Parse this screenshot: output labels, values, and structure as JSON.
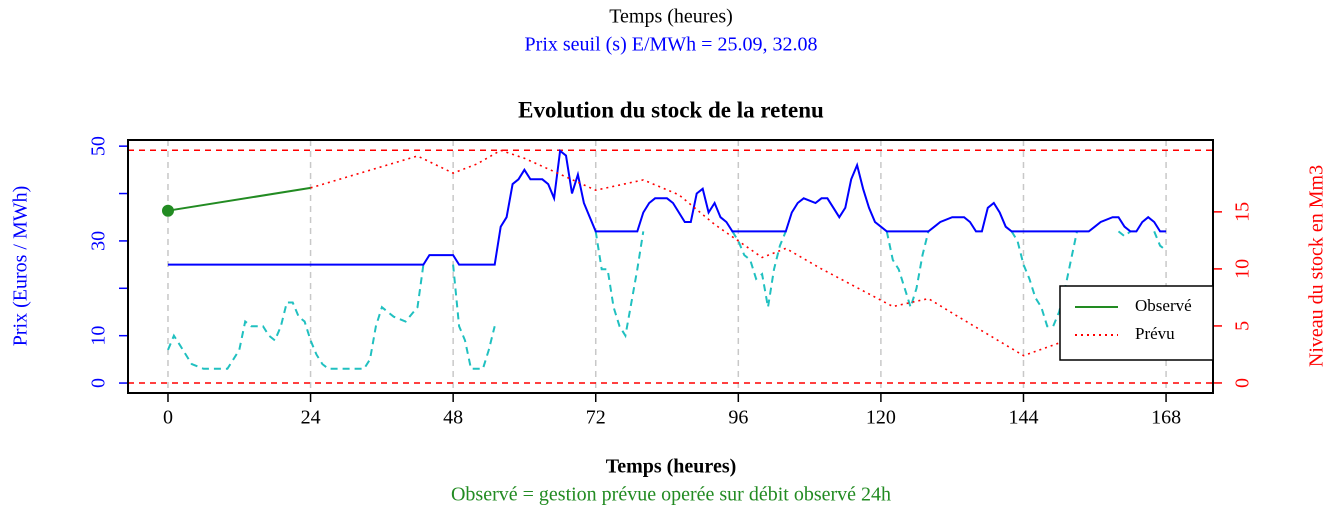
{
  "chart_data": {
    "type": "line",
    "header": "Temps (heures)",
    "subtitle": "Prix seuil (s) E/MWh =  25.09, 32.08",
    "title": "Evolution du stock de la retenu",
    "xlabel": "Temps (heures)",
    "caption": "Observé = gestion prévue operée sur débit observé 24h",
    "ylabel": "Prix (Euros / MWh)",
    "y2label": "Niveau du stock en Mm3",
    "y_color": "#0000ff",
    "y2_color": "#ff0000",
    "subtitle_color": "#0000ff",
    "caption_color": "#228b22",
    "xlim": [
      -6.73,
      175.9
    ],
    "xticks": [
      0,
      24,
      48,
      72,
      96,
      120,
      144,
      168
    ],
    "vgrid": true,
    "ylim": [
      -2.1,
      51.3
    ],
    "yticks": [
      0,
      10,
      30,
      50
    ],
    "yminorticks": [
      20,
      40
    ],
    "y2lim": [
      -0.88,
      21.3
    ],
    "y2ticks": [
      0,
      5,
      10,
      15
    ],
    "hlines_y2": [
      0,
      20.4
    ],
    "legend": "bottomright",
    "series": [
      {
        "color": "#20c0c0",
        "linestyle": "dashed",
        "axis": "y",
        "x": [
          0,
          1,
          2,
          4,
          6,
          10,
          12,
          13,
          14,
          16,
          17,
          18,
          19,
          20,
          21,
          22,
          23,
          24,
          25,
          26,
          27,
          30,
          33,
          34,
          35,
          36,
          38,
          40,
          42,
          43,
          null,
          48,
          49,
          50,
          51,
          53,
          54,
          55,
          null,
          72,
          73,
          74,
          75,
          76,
          77,
          78,
          79,
          80,
          null,
          95,
          96,
          97,
          98,
          99,
          100,
          101,
          102,
          103,
          104,
          null,
          121,
          122,
          123,
          124,
          125,
          126,
          127,
          128,
          null,
          142,
          143,
          144,
          145,
          146,
          147,
          148,
          149,
          150,
          151,
          152,
          153,
          null,
          160,
          161,
          162,
          null,
          166,
          167,
          168
        ],
        "values": [
          7,
          10,
          8,
          4,
          3,
          3,
          7,
          13,
          12,
          12,
          10,
          9,
          12,
          17,
          17,
          14,
          13,
          9,
          6,
          4,
          3,
          3,
          3,
          5,
          12,
          16,
          14,
          13,
          16,
          25,
          null,
          25,
          12,
          9,
          3,
          3,
          7,
          12,
          null,
          32,
          24,
          24,
          16,
          12,
          10,
          17,
          24,
          32,
          null,
          32,
          30,
          27,
          26,
          22,
          23,
          16,
          24,
          29,
          32,
          null,
          32,
          26,
          24,
          20,
          16,
          20,
          27,
          32,
          null,
          32,
          30,
          25,
          22,
          18,
          16,
          12,
          12,
          15,
          20,
          26,
          32,
          null,
          32,
          31,
          32,
          null,
          32,
          29,
          28
        ]
      },
      {
        "color": "#0000ff",
        "linestyle": "solid",
        "axis": "y",
        "x": [
          0,
          43,
          44,
          48,
          49,
          55,
          56,
          57,
          58,
          59,
          60,
          61,
          63,
          64,
          65,
          66,
          67,
          68,
          69,
          70,
          71,
          72,
          79,
          80,
          81,
          82,
          84,
          85,
          86,
          87,
          88,
          89,
          90,
          91,
          92,
          93,
          94,
          95,
          104,
          105,
          106,
          107,
          109,
          110,
          111,
          112,
          113,
          114,
          115,
          116,
          117,
          118,
          119,
          120,
          121,
          128,
          129,
          130,
          132,
          134,
          135,
          136,
          137,
          138,
          139,
          140,
          141,
          142,
          155,
          156,
          157,
          159,
          160,
          161,
          162,
          163,
          164,
          165,
          166,
          167,
          168
        ],
        "values": [
          25,
          25,
          27,
          27,
          25,
          25,
          33,
          35,
          42,
          43,
          45,
          43,
          43,
          42,
          39,
          49,
          48,
          40,
          44,
          38,
          35,
          32,
          32,
          36,
          38,
          39,
          39,
          38,
          36,
          34,
          34,
          40,
          41,
          36,
          38,
          35,
          34,
          32,
          32,
          36,
          38,
          39,
          38,
          39,
          39,
          37,
          35,
          37,
          43,
          46,
          41,
          37,
          34,
          33,
          32,
          32,
          33,
          34,
          35,
          35,
          34,
          32,
          32,
          37,
          38,
          36,
          33,
          32,
          32,
          33,
          34,
          35,
          35,
          33,
          32,
          32,
          34,
          35,
          34,
          32,
          32
        ]
      },
      {
        "name": "Observé",
        "color": "#228b22",
        "linestyle": "solid",
        "axis": "y2",
        "start_marker": true,
        "x": [
          0,
          24
        ],
        "values": [
          15.1,
          17.1
        ]
      },
      {
        "name": "Prévu",
        "color": "#ff0000",
        "linestyle": "dotted",
        "axis": "y2",
        "x": [
          24,
          42,
          48,
          52,
          56,
          60,
          72,
          80,
          86,
          92,
          100,
          104,
          110,
          122,
          128,
          134,
          144,
          150,
          156
        ],
        "values": [
          17.1,
          19.9,
          18.4,
          19.2,
          20.4,
          19.7,
          16.9,
          17.8,
          16.5,
          13.9,
          11,
          11.8,
          10,
          6.7,
          7.4,
          5.5,
          2.4,
          3.5,
          4
        ]
      }
    ]
  }
}
